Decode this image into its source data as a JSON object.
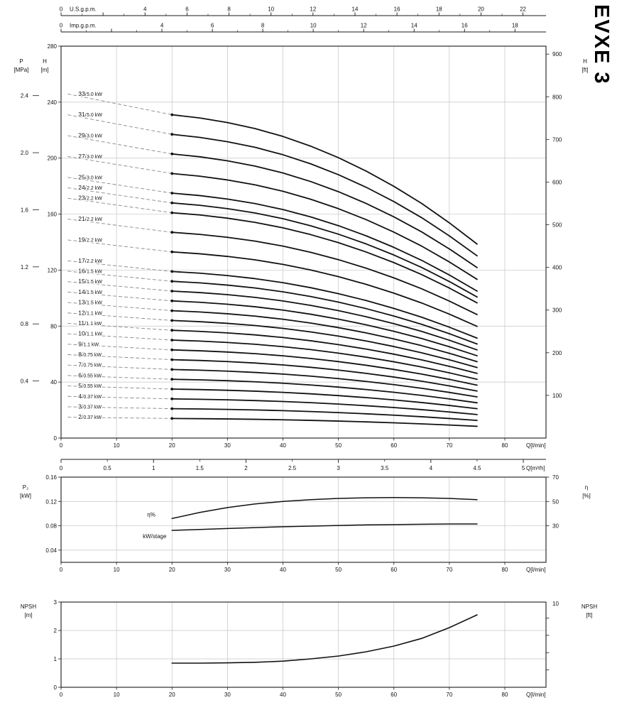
{
  "title": "EVXE 3",
  "chart_data": [
    {
      "id": "head-capacity",
      "type": "line",
      "top_axes": [
        {
          "label": "U.S.g.p.m.",
          "unit_lmin": 3.785,
          "max": 22,
          "labeled_ticks": [
            0,
            4,
            6,
            8,
            10,
            12,
            14,
            16,
            18,
            20,
            22
          ]
        },
        {
          "label": "Imp.g.p.m.",
          "unit_lmin": 4.546,
          "max": 18,
          "labeled_ticks": [
            0,
            4,
            6,
            8,
            10,
            12,
            14,
            16,
            18
          ]
        }
      ],
      "bottom_axis": {
        "label": "Q[l/min]",
        "ticks": [
          0,
          10,
          20,
          30,
          40,
          50,
          60,
          70,
          80
        ]
      },
      "m3h_axis": {
        "label": "Q[m³/h]",
        "unit_lmin": 16.6667,
        "ticks": [
          "0",
          "0.5",
          "1",
          "1.5",
          "2",
          "2.5",
          "3",
          "3.5",
          "4",
          "4.5",
          "5"
        ]
      },
      "left_axis_mpa": {
        "label_lines": [
          "P",
          "[MPa]"
        ],
        "ticks": [
          "0.4",
          "0.8",
          "1.2",
          "1.6",
          "2.0",
          "2.4"
        ],
        "m_per_mpa": 101.94
      },
      "left_axis_m": {
        "label_lines": [
          "H",
          "[m]"
        ],
        "ticks": [
          0,
          40,
          80,
          120,
          160,
          200,
          240,
          280
        ],
        "max": 280
      },
      "right_axis_ft": {
        "label_lines": [
          "H",
          "[ft]"
        ],
        "ticks": [
          100,
          200,
          300,
          400,
          500,
          600,
          700,
          800,
          900
        ],
        "m_per_ft": 0.3048
      },
      "q_lmin": [
        20,
        25,
        30,
        35,
        40,
        45,
        50,
        55,
        60,
        65,
        70,
        75
      ],
      "head_per_stage_m": [
        7.0,
        6.93,
        6.83,
        6.7,
        6.53,
        6.32,
        6.07,
        5.78,
        5.45,
        5.08,
        4.66,
        4.2
      ],
      "shutoff_head_per_stage_m": 7.45,
      "series": [
        {
          "stages": 33,
          "power": "5.0 kW"
        },
        {
          "stages": 31,
          "power": "5.0 kW"
        },
        {
          "stages": 29,
          "power": "3.0 kW"
        },
        {
          "stages": 27,
          "power": "3.0 kW"
        },
        {
          "stages": 25,
          "power": "3.0 kW"
        },
        {
          "stages": 24,
          "power": "2.2 kW"
        },
        {
          "stages": 23,
          "power": "2.2 kW"
        },
        {
          "stages": 21,
          "power": "2.2 kW"
        },
        {
          "stages": 19,
          "power": "2.2 kW"
        },
        {
          "stages": 17,
          "power": "2.2 kW"
        },
        {
          "stages": 16,
          "power": "1.5 kW"
        },
        {
          "stages": 15,
          "power": "1.5 kW"
        },
        {
          "stages": 14,
          "power": "1.5 kW"
        },
        {
          "stages": 13,
          "power": "1.5 kW"
        },
        {
          "stages": 12,
          "power": "1.1 kW"
        },
        {
          "stages": 11,
          "power": "1.1 kW"
        },
        {
          "stages": 10,
          "power": "1.1 kW"
        },
        {
          "stages": 9,
          "power": "1.1 kW"
        },
        {
          "stages": 8,
          "power": "0.75 kW"
        },
        {
          "stages": 7,
          "power": "0.75 kW"
        },
        {
          "stages": 6,
          "power": "0.55 kW"
        },
        {
          "stages": 5,
          "power": "0.55 kW"
        },
        {
          "stages": 4,
          "power": "0.37 kW"
        },
        {
          "stages": 3,
          "power": "0.37 kW"
        },
        {
          "stages": 2,
          "power": "0.37 kW"
        }
      ]
    },
    {
      "id": "power-efficiency",
      "type": "line",
      "left_axis_kw": {
        "label_lines": [
          "P₂",
          "[kW]"
        ],
        "ticks": [
          "0.16",
          "0.12",
          "0.08",
          "0.04"
        ],
        "min": 0.02,
        "max": 0.16
      },
      "right_axis_eta": {
        "label_lines": [
          "η",
          "[%]"
        ],
        "ticks": [
          70,
          50,
          30
        ],
        "min": 0,
        "max": 70
      },
      "bottom_axis": {
        "label": "Q[l/min]",
        "ticks": [
          0,
          10,
          20,
          30,
          40,
          50,
          60,
          70,
          80
        ]
      },
      "q_lmin": [
        20,
        25,
        30,
        35,
        40,
        45,
        50,
        55,
        60,
        65,
        70,
        75
      ],
      "eta_percent": [
        36,
        41,
        45,
        48,
        50,
        51.5,
        52.5,
        53,
        53.2,
        53,
        52.5,
        51.5
      ],
      "kw_per_stage": [
        0.0725,
        0.074,
        0.0755,
        0.077,
        0.0785,
        0.0795,
        0.0805,
        0.0815,
        0.082,
        0.0825,
        0.083,
        0.083
      ],
      "curve_labels": {
        "eta": "η%",
        "kw": "kW/stage"
      }
    },
    {
      "id": "npsh",
      "type": "line",
      "left_axis_m": {
        "label_lines": [
          "NPSH",
          "[m]"
        ],
        "ticks": [
          0,
          1,
          2,
          3
        ],
        "max": 3
      },
      "right_axis_ft": {
        "label_lines": [
          "NPSH",
          "[ft]"
        ],
        "ticks": [
          10
        ],
        "m_per_ft": 0.3048
      },
      "bottom_axis": {
        "label": "Q[l/min]",
        "ticks": [
          0,
          10,
          20,
          30,
          40,
          50,
          60,
          70,
          80
        ]
      },
      "q_lmin": [
        20,
        25,
        30,
        35,
        40,
        45,
        50,
        55,
        60,
        65,
        70,
        75
      ],
      "npsh_m": [
        0.85,
        0.85,
        0.86,
        0.88,
        0.92,
        1.0,
        1.1,
        1.25,
        1.45,
        1.72,
        2.1,
        2.55
      ]
    }
  ]
}
